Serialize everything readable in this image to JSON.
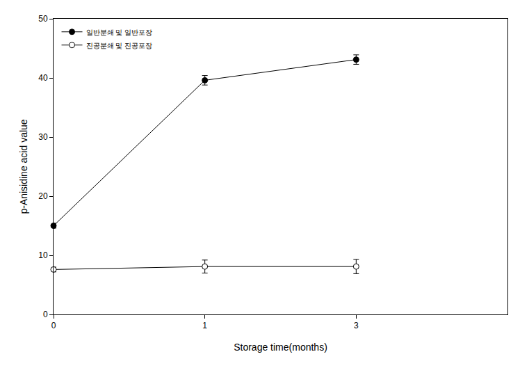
{
  "chart_data": {
    "type": "line",
    "x_label": "Storage time(months)",
    "y_label": "p-Anisidine acid value",
    "categories": [
      "0",
      "1",
      "3"
    ],
    "series": [
      {
        "name": "일반분쇄 및 일반포장",
        "color": "#000000",
        "marker": "circle",
        "line_style": "solid",
        "values": [
          15.0,
          39.6,
          43.1
        ],
        "errors": [
          0.4,
          0.8,
          0.8
        ]
      },
      {
        "name": "진공분쇄 및 진공포장",
        "color": "#000000",
        "marker": "circle-open",
        "line_style": "solid",
        "values": [
          7.6,
          8.1,
          8.1
        ],
        "errors": [
          0.4,
          1.1,
          1.2
        ]
      }
    ],
    "ylim": [
      0,
      50
    ],
    "yticks": [
      0,
      10,
      20,
      30,
      40,
      50
    ],
    "grid": false,
    "legend": "upper left"
  }
}
